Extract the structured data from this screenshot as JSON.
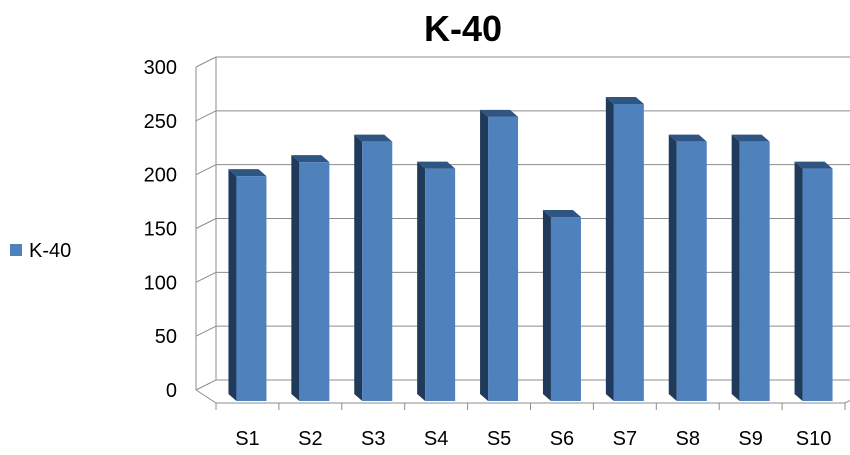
{
  "chart_data": {
    "type": "bar",
    "title": "K-40",
    "categories": [
      "S1",
      "S2",
      "S3",
      "S4",
      "S5",
      "S6",
      "S7",
      "S8",
      "S9",
      "S10"
    ],
    "series": [
      {
        "name": "K-40",
        "values": [
          207,
          220,
          239,
          214,
          262,
          169,
          274,
          239,
          239,
          214
        ]
      }
    ],
    "yticks": [
      "0",
      "50",
      "100",
      "150",
      "200",
      "250",
      "300"
    ],
    "ylim": [
      0,
      300
    ],
    "grid": true,
    "legend_position": "left",
    "three_d": true,
    "colors": {
      "bar_front": "#4f81bd",
      "bar_side": "#1f3a5a",
      "bar_top": "#2f5683",
      "grid": "#8c8c8c"
    }
  }
}
